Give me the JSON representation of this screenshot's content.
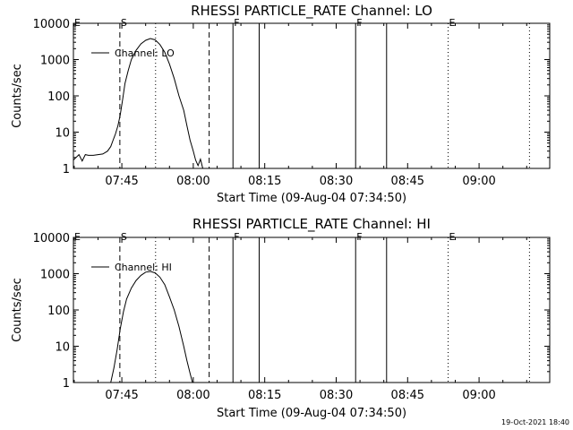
{
  "footer": {
    "timestamp": "19-Oct-2021 18:40"
  },
  "chart_data": [
    {
      "type": "line",
      "title": "RHESSI PARTICLE_RATE Channel: LO",
      "xlabel": "Start Time (09-Aug-04 07:34:50)",
      "ylabel": "Counts/sec",
      "y_scale": "log",
      "ylim": [
        1,
        10000
      ],
      "y_ticks": [
        "1",
        "10",
        "100",
        "1000",
        "10000"
      ],
      "x_ticks": [
        "07:45",
        "08:00",
        "08:15",
        "08:30",
        "08:45",
        "09:00"
      ],
      "xlim": [
        "07:34:50",
        "09:14:50"
      ],
      "legend": {
        "placement": "top-left",
        "entries": [
          "Channel: LO"
        ]
      },
      "series": [
        {
          "name": "Channel: LO",
          "x": [
            "07:34:50",
            "07:36:00",
            "07:36:40",
            "07:37:20",
            "07:38:00",
            "07:39:00",
            "07:40:00",
            "07:41:00",
            "07:42:00",
            "07:42:40",
            "07:43:10",
            "07:43:40",
            "07:44:10",
            "07:44:40",
            "07:45:10",
            "07:45:40",
            "07:46:20",
            "07:47:00",
            "07:48:00",
            "07:49:00",
            "07:50:00",
            "07:51:00",
            "07:52:00",
            "07:53:00",
            "07:54:00",
            "07:55:00",
            "07:56:00",
            "07:57:00",
            "07:58:00",
            "07:58:40",
            "07:59:20",
            "08:00:00",
            "08:00:30",
            "08:01:00",
            "08:01:30",
            "08:02:00"
          ],
          "y": [
            1.7,
            2.4,
            1.6,
            2.4,
            2.3,
            2.3,
            2.4,
            2.5,
            3,
            4,
            6,
            9,
            15,
            30,
            80,
            220,
            500,
            1000,
            1800,
            2700,
            3400,
            3800,
            3500,
            2600,
            1600,
            750,
            300,
            100,
            40,
            15,
            6,
            3,
            1.7,
            1.2,
            1.8,
            1
          ]
        }
      ],
      "markers": [
        {
          "label": "E",
          "time": "07:34:50",
          "style": "none"
        },
        {
          "label": "S",
          "time": "07:44:35",
          "style": "dashed"
        },
        {
          "label": "",
          "time": "07:52:05",
          "style": "dotted"
        },
        {
          "label": "",
          "time": "08:03:20",
          "style": "dashed"
        },
        {
          "label": "F",
          "time": "08:08:20",
          "style": "solid"
        },
        {
          "label": "",
          "time": "08:13:50",
          "style": "solid"
        },
        {
          "label": "F",
          "time": "08:34:05",
          "style": "solid"
        },
        {
          "label": "",
          "time": "08:40:35",
          "style": "solid"
        },
        {
          "label": "E",
          "time": "08:53:30",
          "style": "dotted"
        },
        {
          "label": "",
          "time": "09:10:35",
          "style": "dotted"
        }
      ]
    },
    {
      "type": "line",
      "title": "RHESSI PARTICLE_RATE Channel: HI",
      "xlabel": "Start Time (09-Aug-04 07:34:50)",
      "ylabel": "Counts/sec",
      "y_scale": "log",
      "ylim": [
        1,
        10000
      ],
      "y_ticks": [
        "1",
        "10",
        "100",
        "1000",
        "10000"
      ],
      "x_ticks": [
        "07:45",
        "08:00",
        "08:15",
        "08:30",
        "08:45",
        "09:00"
      ],
      "xlim": [
        "07:34:50",
        "09:14:50"
      ],
      "legend": {
        "placement": "top-left",
        "entries": [
          "Channel: HI"
        ]
      },
      "series": [
        {
          "name": "Channel: HI",
          "x": [
            "07:42:40",
            "07:43:20",
            "07:44:00",
            "07:44:40",
            "07:45:20",
            "07:46:00",
            "07:47:00",
            "07:48:00",
            "07:49:00",
            "07:50:00",
            "07:51:00",
            "07:52:00",
            "07:53:00",
            "07:54:00",
            "07:55:00",
            "07:56:00",
            "07:57:00",
            "07:58:00",
            "07:58:40",
            "07:59:20",
            "07:59:50"
          ],
          "y": [
            1,
            2.5,
            8,
            30,
            90,
            200,
            400,
            650,
            900,
            1100,
            1150,
            1050,
            800,
            500,
            230,
            100,
            35,
            10,
            4,
            1.8,
            1
          ]
        }
      ],
      "markers": [
        {
          "label": "E",
          "time": "07:34:50",
          "style": "none"
        },
        {
          "label": "S",
          "time": "07:44:35",
          "style": "dashed"
        },
        {
          "label": "",
          "time": "07:52:05",
          "style": "dotted"
        },
        {
          "label": "",
          "time": "08:03:20",
          "style": "dashed"
        },
        {
          "label": "F",
          "time": "08:08:20",
          "style": "solid"
        },
        {
          "label": "",
          "time": "08:13:50",
          "style": "solid"
        },
        {
          "label": "F",
          "time": "08:34:05",
          "style": "solid"
        },
        {
          "label": "",
          "time": "08:40:35",
          "style": "solid"
        },
        {
          "label": "E",
          "time": "08:53:30",
          "style": "dotted"
        },
        {
          "label": "",
          "time": "09:10:35",
          "style": "dotted"
        }
      ]
    }
  ]
}
